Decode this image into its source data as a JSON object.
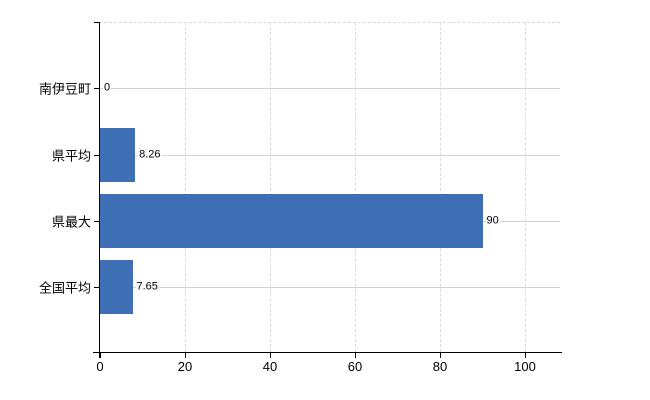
{
  "chart_data": {
    "type": "bar",
    "orientation": "horizontal",
    "title": "",
    "xlabel": "",
    "ylabel": "",
    "categories": [
      "南伊豆町",
      "県平均",
      "県最大",
      "全国平均"
    ],
    "values": [
      0,
      8.26,
      90,
      7.65
    ],
    "value_labels": [
      "0",
      "8.26",
      "90",
      "7.65"
    ],
    "x_ticks": [
      0,
      20,
      40,
      60,
      80,
      100
    ],
    "x_tick_labels": [
      "0",
      "20",
      "40",
      "60",
      "80",
      "100"
    ],
    "xlim": [
      0,
      108
    ],
    "legend": "none",
    "grid": {
      "vertical": "dashed",
      "horizontal": "solid",
      "top_border": "dashed"
    },
    "colors": {
      "bar": "#3e6eb3",
      "axis": "#000000",
      "grid_vertical": "#d9d9d9",
      "grid_horizontal": "#cdd5cc",
      "text": "#000000",
      "background": "#ffffff"
    }
  }
}
